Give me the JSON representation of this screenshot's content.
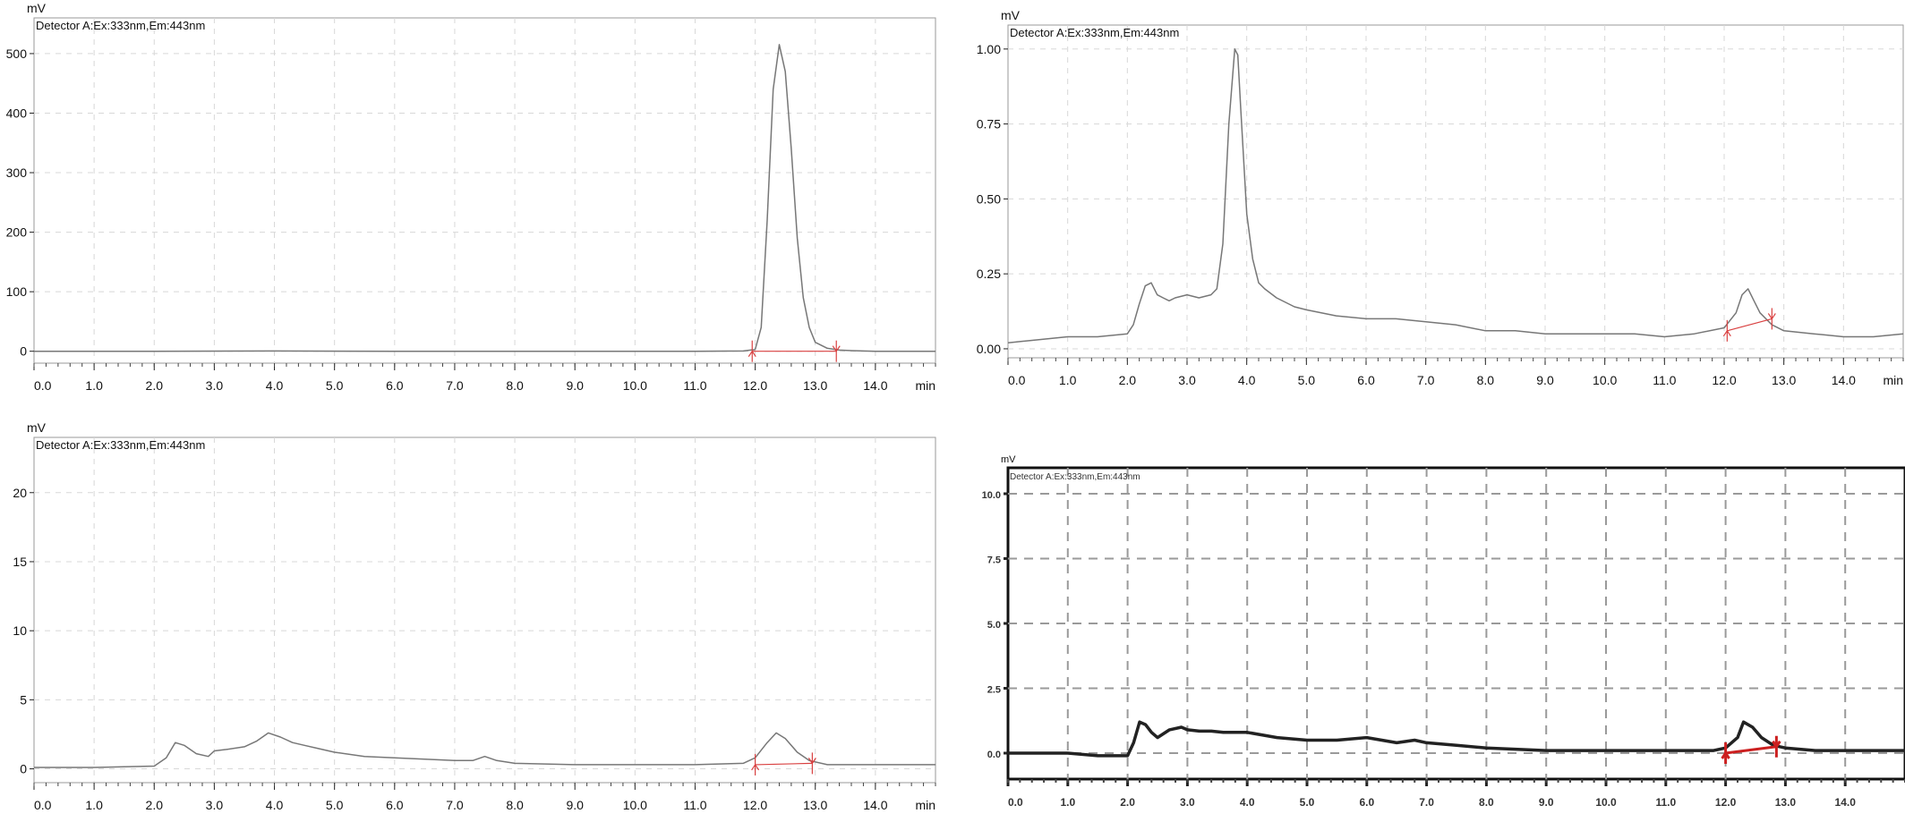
{
  "chart_data": [
    {
      "type": "line",
      "panel": "top-left",
      "ylabel": "mV",
      "xlabel": "min",
      "legend": "Detector A:Ex:333nm,Em:443nm",
      "xlim": [
        0,
        15
      ],
      "ylim": [
        -20,
        560
      ],
      "x_ticks": [
        "0.0",
        "1.0",
        "2.0",
        "3.0",
        "4.0",
        "5.0",
        "6.0",
        "7.0",
        "8.0",
        "9.0",
        "10.0",
        "11.0",
        "12.0",
        "13.0",
        "14.0"
      ],
      "y_ticks": [
        "0",
        "100",
        "200",
        "300",
        "400",
        "500"
      ],
      "y_tick_values": [
        0,
        100,
        200,
        300,
        400,
        500
      ],
      "series": [
        {
          "x": [
            0.0,
            2.0,
            4.0,
            6.0,
            8.0,
            10.0,
            11.0,
            11.8,
            12.0,
            12.1,
            12.2,
            12.3,
            12.4,
            12.5,
            12.6,
            12.7,
            12.8,
            12.9,
            13.0,
            13.2,
            13.4,
            13.6,
            14.0,
            15.0
          ],
          "y": [
            0,
            0,
            0.5,
            0,
            0,
            0,
            0,
            0.5,
            3,
            40,
            220,
            440,
            515,
            470,
            340,
            190,
            90,
            40,
            15,
            5,
            2,
            1,
            0,
            0
          ]
        }
      ],
      "baseline": {
        "x": [
          11.95,
          13.35
        ],
        "y": [
          0,
          0
        ]
      },
      "markers": [
        {
          "x": 11.95,
          "y": 0
        },
        {
          "x": 13.35,
          "y": 0
        }
      ],
      "grid": true,
      "line_color": "#777777",
      "marker_color": "#d94040"
    },
    {
      "type": "line",
      "panel": "top-right",
      "ylabel": "mV",
      "xlabel": "min",
      "legend": "Detector A:Ex:333nm,Em:443nm",
      "xlim": [
        0,
        15
      ],
      "ylim": [
        -0.03,
        1.08
      ],
      "x_ticks": [
        "0.0",
        "1.0",
        "2.0",
        "3.0",
        "4.0",
        "5.0",
        "6.0",
        "7.0",
        "8.0",
        "9.0",
        "10.0",
        "11.0",
        "12.0",
        "13.0",
        "14.0"
      ],
      "y_ticks": [
        "0.00",
        "0.25",
        "0.50",
        "0.75",
        "1.00"
      ],
      "y_tick_values": [
        0,
        0.25,
        0.5,
        0.75,
        1.0
      ],
      "series": [
        {
          "x": [
            0.0,
            0.5,
            1.0,
            1.5,
            2.0,
            2.1,
            2.2,
            2.3,
            2.4,
            2.5,
            2.6,
            2.7,
            2.8,
            3.0,
            3.2,
            3.4,
            3.5,
            3.6,
            3.7,
            3.8,
            3.85,
            3.9,
            4.0,
            4.1,
            4.2,
            4.3,
            4.5,
            4.8,
            5.0,
            5.5,
            6.0,
            6.5,
            7.0,
            7.5,
            8.0,
            8.5,
            9.0,
            9.5,
            10.0,
            10.5,
            11.0,
            11.5,
            12.0,
            12.2,
            12.3,
            12.4,
            12.5,
            12.6,
            12.8,
            13.0,
            13.5,
            14.0,
            14.5,
            15.0
          ],
          "y": [
            0.02,
            0.03,
            0.04,
            0.04,
            0.05,
            0.08,
            0.15,
            0.21,
            0.22,
            0.18,
            0.17,
            0.16,
            0.17,
            0.18,
            0.17,
            0.18,
            0.2,
            0.35,
            0.75,
            1.0,
            0.98,
            0.8,
            0.45,
            0.3,
            0.22,
            0.2,
            0.17,
            0.14,
            0.13,
            0.11,
            0.1,
            0.1,
            0.09,
            0.08,
            0.06,
            0.06,
            0.05,
            0.05,
            0.05,
            0.05,
            0.04,
            0.05,
            0.07,
            0.12,
            0.18,
            0.2,
            0.16,
            0.12,
            0.08,
            0.06,
            0.05,
            0.04,
            0.04,
            0.05
          ]
        }
      ],
      "baseline": {
        "x": [
          12.05,
          12.8
        ],
        "y": [
          0.06,
          0.1
        ]
      },
      "markers": [
        {
          "x": 12.05,
          "y": 0.06
        },
        {
          "x": 12.8,
          "y": 0.1
        }
      ],
      "grid": true,
      "line_color": "#777777",
      "marker_color": "#d94040"
    },
    {
      "type": "line",
      "panel": "bottom-left",
      "ylabel": "mV",
      "xlabel": "min",
      "legend": "Detector A:Ex:333nm,Em:443nm",
      "xlim": [
        0,
        15
      ],
      "ylim": [
        -1,
        24
      ],
      "x_ticks": [
        "0.0",
        "1.0",
        "2.0",
        "3.0",
        "4.0",
        "5.0",
        "6.0",
        "7.0",
        "8.0",
        "9.0",
        "10.0",
        "11.0",
        "12.0",
        "13.0",
        "14.0"
      ],
      "y_ticks": [
        "0",
        "5",
        "10",
        "15",
        "20"
      ],
      "y_tick_values": [
        0,
        5,
        10,
        15,
        20
      ],
      "series": [
        {
          "x": [
            0.0,
            1.0,
            2.0,
            2.2,
            2.35,
            2.5,
            2.7,
            2.9,
            3.0,
            3.2,
            3.5,
            3.7,
            3.9,
            4.1,
            4.3,
            4.5,
            4.7,
            5.0,
            5.5,
            6.0,
            6.5,
            7.0,
            7.3,
            7.5,
            7.7,
            8.0,
            9.0,
            10.0,
            11.0,
            11.8,
            12.0,
            12.2,
            12.35,
            12.5,
            12.7,
            12.9,
            13.2,
            14.0,
            15.0
          ],
          "y": [
            0.1,
            0.1,
            0.2,
            0.8,
            1.9,
            1.7,
            1.1,
            0.9,
            1.3,
            1.4,
            1.6,
            2.0,
            2.6,
            2.3,
            1.9,
            1.7,
            1.5,
            1.2,
            0.9,
            0.8,
            0.7,
            0.6,
            0.6,
            0.9,
            0.6,
            0.4,
            0.3,
            0.3,
            0.3,
            0.4,
            0.8,
            1.9,
            2.6,
            2.2,
            1.2,
            0.6,
            0.3,
            0.3,
            0.3
          ]
        }
      ],
      "baseline": {
        "x": [
          12.0,
          12.95
        ],
        "y": [
          0.3,
          0.4
        ]
      },
      "markers": [
        {
          "x": 12.0,
          "y": 0.3
        },
        {
          "x": 12.95,
          "y": 0.4
        }
      ],
      "grid": true,
      "line_color": "#777777",
      "marker_color": "#d94040"
    },
    {
      "type": "line",
      "panel": "bottom-right",
      "ylabel": "mV",
      "xlabel": "",
      "legend": "Detector A:Ex:333nm,Em:443nm",
      "xlim": [
        0,
        15
      ],
      "ylim": [
        -1,
        11
      ],
      "x_ticks": [
        "0.0",
        "1.0",
        "2.0",
        "3.0",
        "4.0",
        "5.0",
        "6.0",
        "7.0",
        "8.0",
        "9.0",
        "10.0",
        "11.0",
        "12.0",
        "13.0",
        "14.0"
      ],
      "y_ticks": [
        "0.0",
        "2.5",
        "5.0",
        "7.5",
        "10.0"
      ],
      "y_tick_values": [
        0,
        2.5,
        5,
        7.5,
        10
      ],
      "series": [
        {
          "x": [
            0.0,
            1.0,
            1.5,
            2.0,
            2.1,
            2.2,
            2.3,
            2.4,
            2.5,
            2.7,
            2.9,
            3.0,
            3.2,
            3.4,
            3.6,
            4.0,
            4.5,
            5.0,
            5.5,
            6.0,
            6.5,
            6.8,
            7.0,
            7.5,
            8.0,
            9.0,
            10.0,
            11.0,
            11.8,
            12.0,
            12.2,
            12.3,
            12.45,
            12.6,
            12.8,
            13.0,
            13.5,
            14.0,
            15.0
          ],
          "y": [
            0.0,
            0.0,
            -0.1,
            -0.1,
            0.4,
            1.2,
            1.1,
            0.8,
            0.6,
            0.9,
            1.0,
            0.9,
            0.85,
            0.85,
            0.8,
            0.8,
            0.6,
            0.5,
            0.5,
            0.6,
            0.4,
            0.5,
            0.4,
            0.3,
            0.2,
            0.1,
            0.1,
            0.1,
            0.1,
            0.2,
            0.6,
            1.2,
            1.0,
            0.6,
            0.3,
            0.2,
            0.1,
            0.1,
            0.1
          ]
        }
      ],
      "baseline": {
        "x": [
          12.0,
          12.85
        ],
        "y": [
          0.0,
          0.25
        ]
      },
      "markers": [
        {
          "x": 12.0,
          "y": 0.0
        },
        {
          "x": 12.85,
          "y": 0.25
        }
      ],
      "grid": true,
      "line_color": "#222222",
      "marker_color": "#cc2020"
    }
  ]
}
